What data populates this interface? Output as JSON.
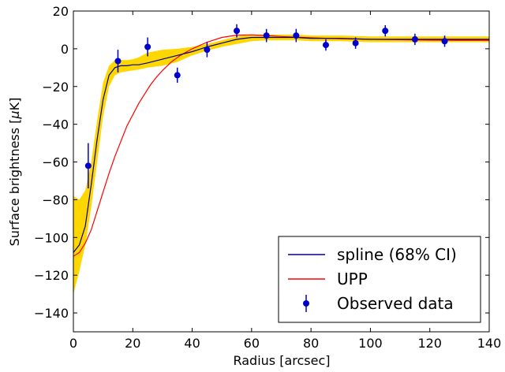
{
  "chart_data": {
    "type": "line",
    "xlabel_prefix": "Radius [arcsec]",
    "ylabel_prefix": "Surface brightness [",
    "ylabel_mu": "μ",
    "ylabel_suffix": "K]",
    "xlim": [
      0,
      140
    ],
    "ylim": [
      -150,
      20
    ],
    "x_ticks": [
      0,
      20,
      40,
      60,
      80,
      100,
      120,
      140
    ],
    "y_ticks": [
      -140,
      -120,
      -100,
      -80,
      -60,
      -40,
      -20,
      0,
      20
    ],
    "grid": false,
    "legend_position": "bottom-right",
    "colors": {
      "band": "#FFD700",
      "spline": "#00008B",
      "upp": "#FF0000",
      "data": "#0000CC"
    },
    "series": [
      {
        "name": "spline (68% CI)",
        "kind": "line",
        "x": [
          0,
          2,
          4,
          6,
          8,
          10,
          12,
          14,
          16,
          18,
          20,
          22,
          25,
          30,
          35,
          40,
          45,
          50,
          55,
          60,
          65,
          70,
          75,
          80,
          90,
          100,
          110,
          120,
          130,
          140
        ],
        "y": [
          -108,
          -104,
          -94,
          -72,
          -48,
          -27,
          -14,
          -10,
          -9,
          -9,
          -8.5,
          -8.5,
          -7.5,
          -5.5,
          -3.5,
          -1.5,
          1,
          3,
          5,
          6,
          6,
          6,
          6,
          5.5,
          5.5,
          5,
          5,
          5,
          5,
          5
        ]
      },
      {
        "name": "spline-band-upper",
        "kind": "band-upper",
        "x": [
          0,
          2,
          4,
          6,
          8,
          10,
          12,
          14,
          16,
          18,
          20,
          22,
          25,
          30,
          35,
          40,
          45,
          50,
          55,
          60,
          65,
          70,
          75,
          80,
          90,
          100,
          110,
          120,
          130,
          140
        ],
        "y": [
          -78,
          -80,
          -75,
          -60,
          -38,
          -18,
          -9,
          -6,
          -6,
          -6,
          -5.5,
          -4.5,
          -2,
          -0.5,
          0,
          1,
          2.5,
          4.5,
          6.5,
          7.5,
          7.5,
          7.5,
          7.5,
          7,
          7,
          6.5,
          6.5,
          6.5,
          6.5,
          6.5
        ]
      },
      {
        "name": "spline-band-lower",
        "kind": "band-lower",
        "x": [
          0,
          2,
          4,
          6,
          8,
          10,
          12,
          14,
          16,
          18,
          20,
          22,
          25,
          30,
          35,
          40,
          45,
          50,
          55,
          60,
          65,
          70,
          75,
          80,
          90,
          100,
          110,
          120,
          130,
          140
        ],
        "y": [
          -130,
          -118,
          -104,
          -84,
          -60,
          -36,
          -20,
          -14,
          -12.5,
          -12,
          -11.5,
          -11,
          -10,
          -9,
          -7,
          -3.5,
          -1,
          1,
          2.5,
          4,
          4.5,
          4.5,
          4.5,
          4,
          4,
          3.5,
          3.5,
          3.5,
          3.5,
          3.5
        ]
      },
      {
        "name": "UPP",
        "kind": "line",
        "x": [
          0,
          2,
          4,
          6,
          8,
          10,
          12,
          14,
          16,
          18,
          20,
          22,
          24,
          26,
          28,
          30,
          33,
          36,
          40,
          45,
          50,
          55,
          60,
          65,
          70,
          80,
          90,
          100,
          110,
          120,
          130,
          140
        ],
        "y": [
          -110,
          -108,
          -103,
          -96,
          -86,
          -76,
          -66,
          -57,
          -49,
          -41,
          -35,
          -29,
          -24,
          -19,
          -15,
          -11.5,
          -7,
          -3.5,
          0,
          3.5,
          6,
          7.2,
          7.4,
          7,
          6.5,
          5.8,
          5.3,
          5,
          4.8,
          4.6,
          4.5,
          4.5
        ]
      },
      {
        "name": "Observed data",
        "kind": "errorbar",
        "x": [
          5,
          15,
          25,
          35,
          45,
          55,
          65,
          75,
          85,
          95,
          105,
          115,
          125
        ],
        "y": [
          -62,
          -6.5,
          1,
          -14,
          -0.5,
          9.5,
          7,
          7,
          2,
          3,
          9.5,
          5,
          4
        ],
        "yerr": [
          12,
          6,
          5,
          4,
          4,
          3.5,
          3.5,
          3.5,
          3,
          3,
          3,
          3,
          3
        ]
      }
    ],
    "legend": [
      {
        "label": "spline (68% CI)"
      },
      {
        "label": "UPP"
      },
      {
        "label": "Observed data"
      }
    ]
  }
}
